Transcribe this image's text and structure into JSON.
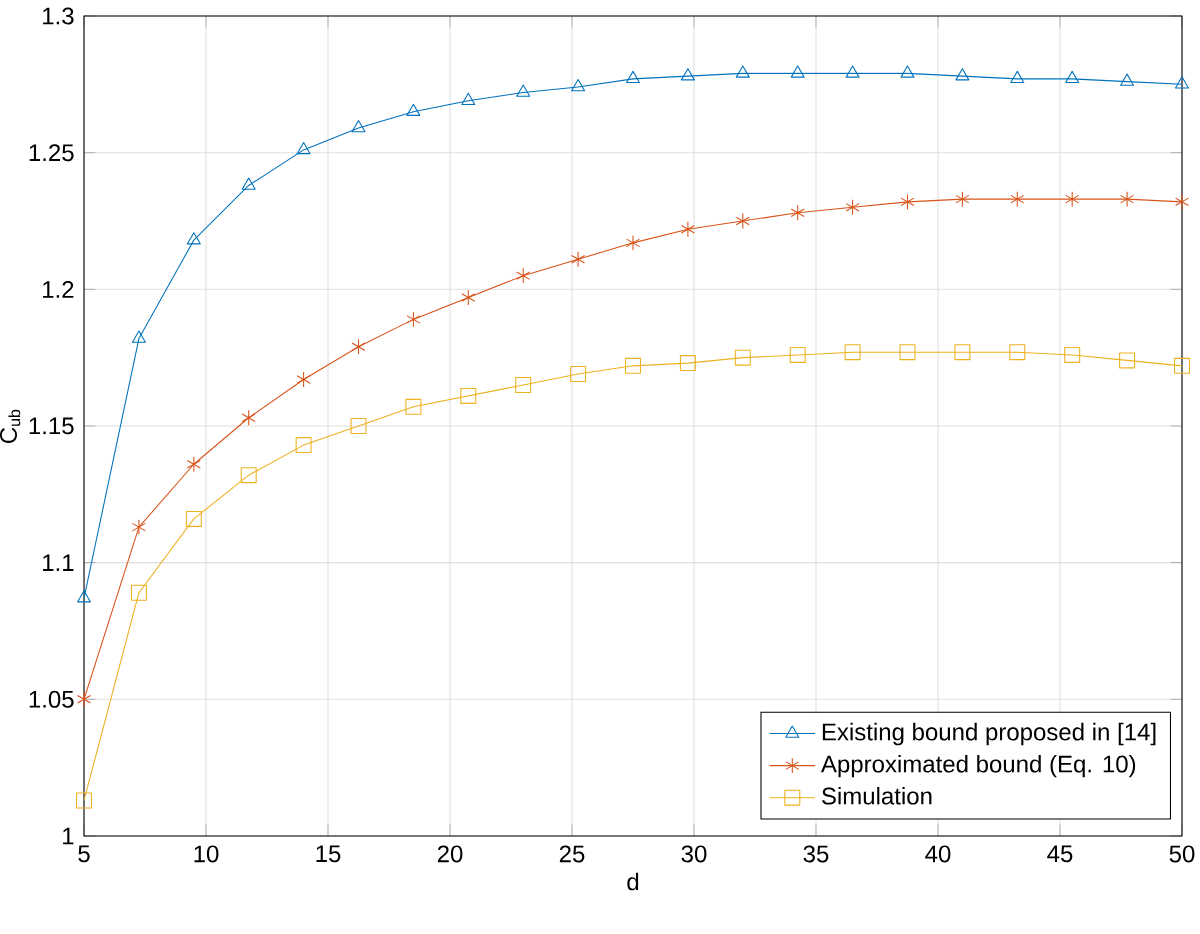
{
  "chart_data": {
    "type": "line",
    "xlabel": "d",
    "ylabel": "C$_{ub}$",
    "x": [
      5,
      7.25,
      9.5,
      11.75,
      14,
      16.25,
      18.5,
      20.75,
      23,
      25.25,
      27.5,
      29.75,
      32,
      34.25,
      36.5,
      38.75,
      41,
      43.25,
      45.5,
      47.75,
      50
    ],
    "series": [
      {
        "name": "Existing bound proposed in [14]",
        "color": "#0072bd",
        "marker": "triangle",
        "values": [
          1.087,
          1.182,
          1.218,
          1.238,
          1.251,
          1.259,
          1.265,
          1.269,
          1.272,
          1.274,
          1.277,
          1.278,
          1.279,
          1.279,
          1.279,
          1.279,
          1.278,
          1.277,
          1.277,
          1.276,
          1.275
        ]
      },
      {
        "name": "Approximated bound (Eq. 10)",
        "color": "#d95319",
        "marker": "cross",
        "values": [
          1.05,
          1.113,
          1.136,
          1.153,
          1.167,
          1.179,
          1.189,
          1.197,
          1.205,
          1.211,
          1.217,
          1.222,
          1.225,
          1.228,
          1.23,
          1.232,
          1.233,
          1.233,
          1.233,
          1.233,
          1.232
        ]
      },
      {
        "name": "Simulation",
        "color": "#edb120",
        "marker": "square",
        "values": [
          1.013,
          1.089,
          1.116,
          1.132,
          1.143,
          1.15,
          1.157,
          1.161,
          1.165,
          1.169,
          1.172,
          1.173,
          1.175,
          1.176,
          1.177,
          1.177,
          1.177,
          1.177,
          1.176,
          1.174,
          1.172
        ]
      }
    ],
    "xlim": [
      5,
      50
    ],
    "ylim": [
      1,
      1.3
    ],
    "xticks": [
      5,
      10,
      15,
      20,
      25,
      30,
      35,
      40,
      45,
      50
    ],
    "yticks": [
      1,
      1.05,
      1.1,
      1.15,
      1.2,
      1.25,
      1.3
    ],
    "grid": true,
    "legend": "bottom right",
    "line_style": "solid"
  }
}
